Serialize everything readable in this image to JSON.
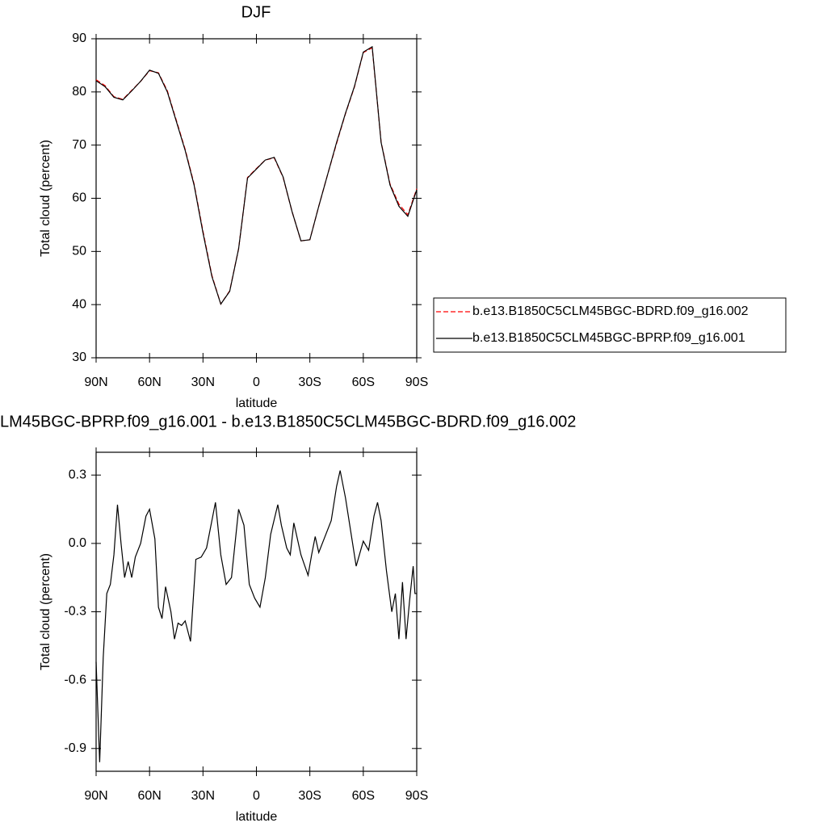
{
  "chart_data": [
    {
      "type": "line",
      "title": "DJF",
      "xlabel": "latitude",
      "ylabel": "Total cloud (percent)",
      "x": [
        90,
        85,
        80,
        75,
        70,
        65,
        60,
        55,
        50,
        45,
        40,
        35,
        30,
        25,
        20,
        15,
        10,
        5,
        0,
        -5,
        -10,
        -15,
        -20,
        -25,
        -30,
        -35,
        -40,
        -45,
        -50,
        -55,
        -60,
        -65,
        -70,
        -75,
        -80,
        -85,
        -90
      ],
      "series": [
        {
          "name": "b.e13.B1850C5CLM45BGC-BDRD.f09_g16.002",
          "color": "#ff0000",
          "dash": true,
          "values": [
            82.3,
            81.2,
            79.1,
            78.6,
            80.3,
            82.0,
            84.0,
            83.6,
            80.2,
            74.7,
            69.2,
            62.7,
            53.8,
            45.5,
            40.1,
            42.6,
            50.5,
            63.9,
            65.6,
            67.2,
            67.6,
            63.9,
            57.5,
            52.0,
            52.2,
            58.5,
            64.5,
            70.3,
            75.9,
            80.9,
            87.4,
            88.3,
            70.6,
            62.7,
            58.9,
            56.9,
            61.8
          ]
        },
        {
          "name": "b.e13.B1850C5CLM45BGC-BPRP.f09_g16.001",
          "color": "#000000",
          "dash": false,
          "values": [
            82.1,
            81.0,
            79.0,
            78.5,
            80.2,
            82.0,
            84.1,
            83.5,
            80.0,
            74.5,
            69.0,
            62.5,
            53.5,
            45.3,
            40.1,
            42.5,
            50.5,
            63.8,
            65.5,
            67.2,
            67.7,
            64.0,
            57.5,
            52.0,
            52.2,
            58.5,
            64.5,
            70.5,
            76.0,
            81.0,
            87.5,
            88.5,
            70.5,
            62.5,
            58.5,
            56.6,
            61.6
          ]
        }
      ],
      "xlim": [
        90,
        -90
      ],
      "xticks": [
        {
          "value": 90,
          "label": "90N"
        },
        {
          "value": 60,
          "label": "60N"
        },
        {
          "value": 30,
          "label": "30N"
        },
        0,
        {
          "value": -30,
          "label": "30S"
        },
        {
          "value": -60,
          "label": "60S"
        },
        {
          "value": -90,
          "label": "90S"
        }
      ],
      "ylim": [
        30,
        90
      ],
      "yticks": [
        30,
        40,
        50,
        60,
        70,
        80,
        90
      ],
      "legend": "right"
    },
    {
      "type": "line",
      "title": "LM45BGC-BPRP.f09_g16.001 - b.e13.B1850C5CLM45BGC-BDRD.f09_g16.002",
      "xlabel": "latitude",
      "ylabel": "Total cloud (percent)",
      "x": [
        90,
        88,
        86,
        84,
        82,
        80,
        78,
        76,
        74,
        72,
        70,
        68,
        65,
        62,
        60,
        57,
        55,
        53,
        51,
        48,
        46,
        44,
        42,
        40,
        37,
        34,
        31,
        28,
        23,
        20,
        17,
        14,
        10,
        7,
        4,
        1,
        -2,
        -5,
        -8,
        -12,
        -14,
        -17,
        -19,
        -21,
        -25,
        -29,
        -31,
        -33,
        -35,
        -38,
        -42,
        -45,
        -47,
        -50,
        -53,
        -56,
        -60,
        -63,
        -66,
        -68,
        -70,
        -73,
        -76,
        -78,
        -80,
        -82,
        -84,
        -86,
        -88,
        -89,
        -90
      ],
      "series": [
        {
          "color": "#000000",
          "dash": false,
          "values": [
            -0.52,
            -0.96,
            -0.5,
            -0.22,
            -0.18,
            -0.05,
            0.17,
            0.0,
            -0.15,
            -0.08,
            -0.15,
            -0.06,
            0.0,
            0.12,
            0.15,
            0.02,
            -0.28,
            -0.33,
            -0.19,
            -0.3,
            -0.42,
            -0.35,
            -0.36,
            -0.34,
            -0.43,
            -0.07,
            -0.06,
            -0.02,
            0.18,
            -0.05,
            -0.18,
            -0.15,
            0.15,
            0.08,
            -0.18,
            -0.24,
            -0.28,
            -0.15,
            0.04,
            0.17,
            0.08,
            -0.02,
            -0.05,
            0.09,
            -0.05,
            -0.14,
            -0.05,
            0.03,
            -0.04,
            0.02,
            0.1,
            0.25,
            0.32,
            0.2,
            0.05,
            -0.1,
            0.01,
            -0.03,
            0.12,
            0.18,
            0.1,
            -0.12,
            -0.3,
            -0.22,
            -0.42,
            -0.17,
            -0.42,
            -0.25,
            -0.1,
            -0.22,
            -0.22
          ]
        }
      ],
      "xlim": [
        90,
        -90
      ],
      "xticks": [
        {
          "value": 90,
          "label": "90N"
        },
        {
          "value": 60,
          "label": "60N"
        },
        {
          "value": 30,
          "label": "30N"
        },
        0,
        {
          "value": -30,
          "label": "30S"
        },
        {
          "value": -60,
          "label": "60S"
        },
        {
          "value": -90,
          "label": "90S"
        }
      ],
      "ylim": [
        -1.0,
        0.4
      ],
      "yticks": [
        {
          "value": -0.9,
          "label": "-0.9"
        },
        {
          "value": -0.6,
          "label": "-0.6"
        },
        {
          "value": -0.3,
          "label": "-0.3"
        },
        {
          "value": 0,
          "label": "0.0"
        },
        0.3
      ]
    }
  ]
}
